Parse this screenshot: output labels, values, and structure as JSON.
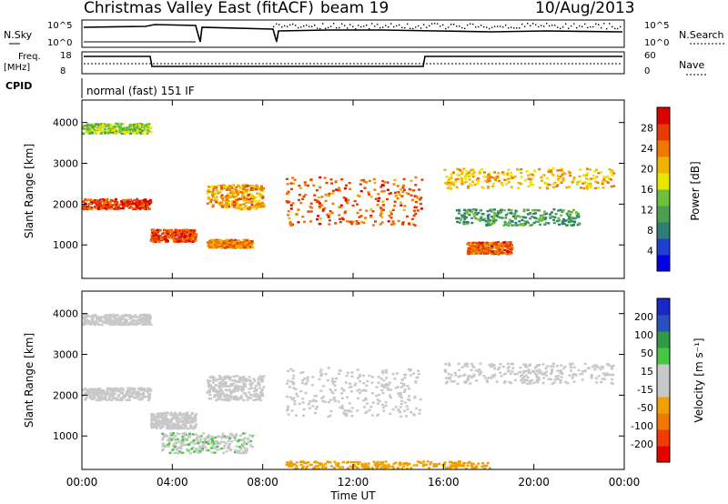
{
  "header": {
    "station": "Christmas Valley East (fitACF)",
    "beam": "beam 19",
    "date": "10/Aug/2013"
  },
  "panels": {
    "nsky": {
      "left_label": "N.Sky",
      "right_label": "N.Search",
      "ticks": [
        "10^5",
        "10^0"
      ]
    },
    "freq": {
      "left_label_1": "Freq.",
      "left_label_2": "[MHz]",
      "right_label": "Nave",
      "left_ticks": [
        "18",
        "8"
      ],
      "right_ticks": [
        "60",
        "0"
      ]
    },
    "cpid": {
      "label": "CPID",
      "mode_text": "normal (fast) 151 IF"
    }
  },
  "colors": {
    "power_scale": [
      "#0000e6",
      "#1f3fd0",
      "#2e7f73",
      "#4aa050",
      "#6ec03a",
      "#e6e600",
      "#f0b400",
      "#f07800",
      "#e63c00",
      "#dc0000"
    ],
    "velocity_scale": [
      "#e60000",
      "#f03c00",
      "#f07800",
      "#f0a000",
      "#c8c8c8",
      "#c8c8c8",
      "#46c846",
      "#2e9a46",
      "#2a50c0",
      "#1a28c8"
    ]
  },
  "chart_data": [
    {
      "type": "heatmap",
      "name": "power",
      "xlabel": "",
      "ylabel": "Slant Range [km]",
      "x_ticks": [
        "00:00",
        "04:00",
        "08:00",
        "12:00",
        "16:00",
        "20:00",
        "00:00"
      ],
      "y_ticks": [
        "1000",
        "2000",
        "3000",
        "4000"
      ],
      "ylim": [
        180,
        4550
      ],
      "colorbar": {
        "label": "Power [dB]",
        "ticks": [
          "4",
          "8",
          "12",
          "16",
          "20",
          "24",
          "28"
        ],
        "range": [
          0,
          30
        ]
      },
      "echo_bands": [
        {
          "t": [
            0.0,
            3.0
          ],
          "r": [
            1900,
            2150
          ],
          "level": 26
        },
        {
          "t": [
            0.0,
            3.0
          ],
          "r": [
            3750,
            4000
          ],
          "level": 14
        },
        {
          "t": [
            3.0,
            5.0
          ],
          "r": [
            1100,
            1400
          ],
          "level": 25
        },
        {
          "t": [
            5.5,
            8.0
          ],
          "r": [
            1900,
            2500
          ],
          "level": 21
        },
        {
          "t": [
            5.5,
            7.5
          ],
          "r": [
            950,
            1150
          ],
          "level": 22
        },
        {
          "t": [
            9.0,
            15.0
          ],
          "r": [
            1500,
            2700
          ],
          "level": 24
        },
        {
          "t": [
            16.0,
            23.5
          ],
          "r": [
            2400,
            2900
          ],
          "level": 19
        },
        {
          "t": [
            16.5,
            22.0
          ],
          "r": [
            1500,
            1900
          ],
          "level": 10
        },
        {
          "t": [
            17.0,
            19.0
          ],
          "r": [
            800,
            1100
          ],
          "level": 24
        }
      ]
    },
    {
      "type": "heatmap",
      "name": "velocity",
      "xlabel": "Time UT",
      "ylabel": "Slant Range [km]",
      "x_ticks": [
        "00:00",
        "04:00",
        "08:00",
        "12:00",
        "16:00",
        "20:00",
        "00:00"
      ],
      "y_ticks": [
        "1000",
        "2000",
        "3000",
        "4000"
      ],
      "ylim": [
        180,
        4550
      ],
      "colorbar": {
        "label": "Velocity [m s⁻¹]",
        "ticks": [
          "-200",
          "-100",
          "-50",
          "-15",
          "15",
          "50",
          "100",
          "200"
        ],
        "range": [
          -250,
          250
        ]
      },
      "echo_bands": [
        {
          "t": [
            0.0,
            3.0
          ],
          "r": [
            1900,
            2200
          ],
          "level": 0
        },
        {
          "t": [
            0.0,
            3.0
          ],
          "r": [
            3750,
            4000
          ],
          "level": -20
        },
        {
          "t": [
            3.0,
            5.0
          ],
          "r": [
            1200,
            1600
          ],
          "level": 0
        },
        {
          "t": [
            3.5,
            7.5
          ],
          "r": [
            600,
            1100
          ],
          "level": 40
        },
        {
          "t": [
            5.5,
            8.0
          ],
          "r": [
            1900,
            2500
          ],
          "level": 0
        },
        {
          "t": [
            9.0,
            15.0
          ],
          "r": [
            1500,
            2700
          ],
          "level": 0
        },
        {
          "t": [
            16.0,
            23.5
          ],
          "r": [
            2300,
            2800
          ],
          "level": 0
        },
        {
          "t": [
            9.0,
            18.0
          ],
          "r": [
            200,
            400
          ],
          "level": -80
        }
      ]
    }
  ]
}
